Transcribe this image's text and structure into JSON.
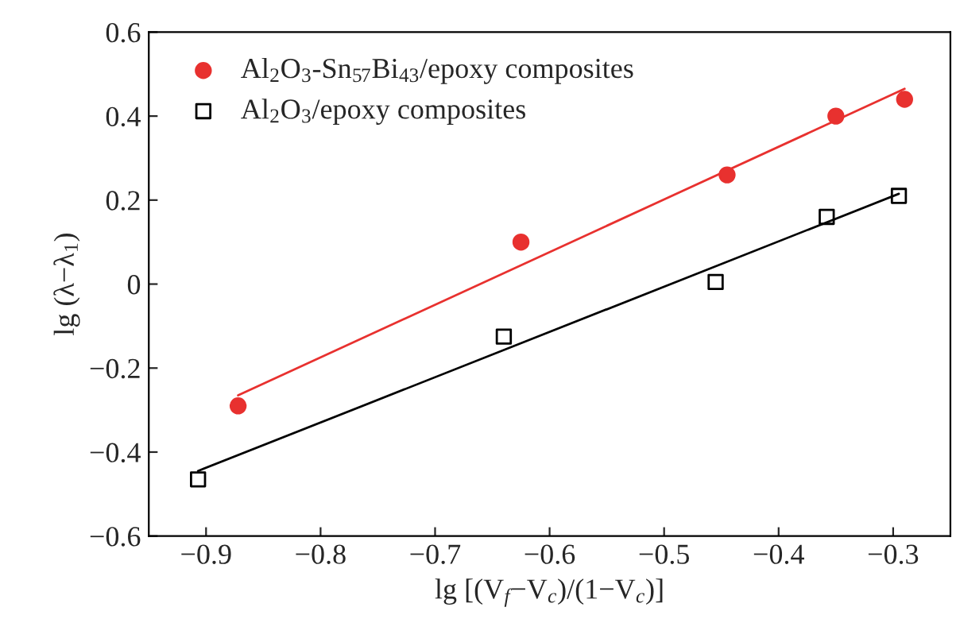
{
  "chart_data": {
    "type": "scatter",
    "xlabel": "lg [(V$_{f}$−V$_{c}$)/(1−V$_{c}$)]",
    "ylabel": "lg (λ−λ$_{1}$)",
    "series": [
      {
        "name": "Al$_{2}$O$_{3}$-Sn$_{57}$Bi$_{43}$/epoxy composites",
        "color": "#e8312f",
        "marker": "circle",
        "x": [
          -0.872,
          -0.625,
          -0.445,
          -0.35,
          -0.29
        ],
        "values": [
          -0.29,
          0.1,
          0.26,
          0.4,
          0.44
        ]
      },
      {
        "name": "Al$_{2}$O$_{3}$/epoxy composites",
        "color": "#000000",
        "marker": "square",
        "x": [
          -0.907,
          -0.64,
          -0.455,
          -0.358,
          -0.295
        ],
        "values": [
          -0.465,
          -0.125,
          0.005,
          0.16,
          0.21
        ]
      },
      {
        "type": "line",
        "color": "#e8312f",
        "marker": "none",
        "x": [
          -0.872,
          -0.29
        ],
        "values": [
          -0.265,
          0.465
        ]
      },
      {
        "type": "line",
        "color": "#000000",
        "marker": "none",
        "x": [
          -0.907,
          -0.295
        ],
        "values": [
          -0.445,
          0.215
        ]
      }
    ],
    "xlim": [
      -0.95,
      -0.25
    ],
    "xticks": [
      {
        "value": -0.9,
        "label": "−0.9"
      },
      {
        "value": -0.8,
        "label": "−0.8"
      },
      {
        "value": -0.7,
        "label": "−0.7"
      },
      {
        "value": -0.6,
        "label": "−0.6"
      },
      {
        "value": -0.5,
        "label": "−0.5"
      },
      {
        "value": -0.4,
        "label": "−0.4"
      },
      {
        "value": -0.3,
        "label": "−0.3"
      }
    ],
    "ylim": [
      -0.6,
      0.6
    ],
    "yticks": [
      {
        "value": -0.6,
        "label": "−0.6"
      },
      {
        "value": -0.4,
        "label": "−0.4"
      },
      {
        "value": -0.2,
        "label": "−0.2"
      },
      0,
      0.2,
      0.4,
      0.6
    ],
    "legend": "top left",
    "grid": false
  }
}
